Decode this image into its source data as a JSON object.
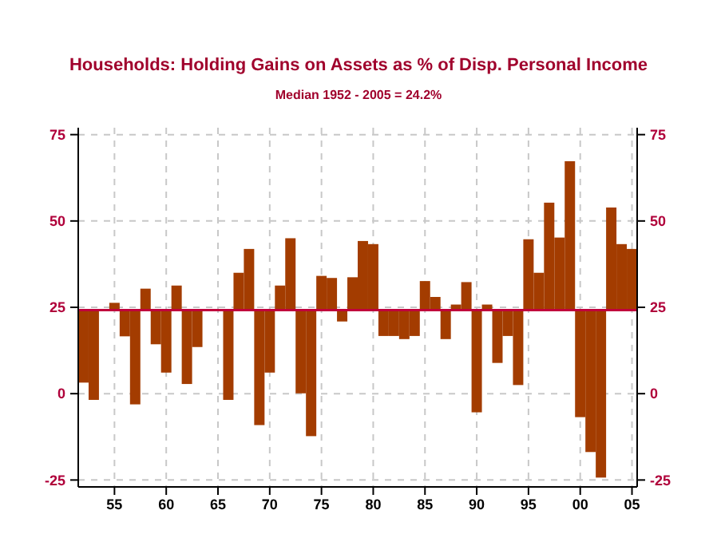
{
  "chart_data": {
    "type": "bar",
    "title": "Households: Holding Gains on Assets as % of Disp. Personal Income",
    "subtitle": "Median 1952 - 2005 = 24.2%",
    "x": [
      1952,
      1953,
      1954,
      1955,
      1956,
      1957,
      1958,
      1959,
      1960,
      1961,
      1962,
      1963,
      1964,
      1965,
      1966,
      1967,
      1968,
      1969,
      1970,
      1971,
      1972,
      1973,
      1974,
      1975,
      1976,
      1977,
      1978,
      1979,
      1980,
      1981,
      1982,
      1983,
      1984,
      1985,
      1986,
      1987,
      1988,
      1989,
      1990,
      1991,
      1992,
      1993,
      1994,
      1995,
      1996,
      1997,
      1998,
      1999,
      2000,
      2001,
      2002,
      2003,
      2004,
      2005
    ],
    "base": [
      24.2,
      24.2,
      24.2,
      24.2,
      24.2,
      24.2,
      24.2,
      24.2,
      24.2,
      24.2,
      24.2,
      24.2,
      24.2,
      24.2,
      24.2,
      24.2,
      24.2,
      24.2,
      24.2,
      24.2,
      24.2,
      24.2,
      24.2,
      24.2,
      24.2,
      24.2,
      24.2,
      24.2,
      24.2,
      24.2,
      24.2,
      24.2,
      24.2,
      24.2,
      24.2,
      24.2,
      24.2,
      24.2,
      24.2,
      24.2,
      24.2,
      24.2,
      24.2,
      24.2,
      24.2,
      24.2,
      24.2,
      24.2,
      24.2,
      24.2,
      24.2,
      24.2,
      24.2,
      24.2
    ],
    "values": [
      -21.0,
      -26.0,
      0.3,
      2.1,
      -7.6,
      -27.3,
      6.2,
      -9.9,
      -18.1,
      7.1,
      -21.4,
      -10.7,
      0.3,
      -0.2,
      -26.0,
      10.8,
      17.7,
      -33.3,
      -18.1,
      7.1,
      20.8,
      -24.1,
      -36.5,
      9.9,
      9.3,
      -3.3,
      9.5,
      20.0,
      19.1,
      -7.5,
      -7.5,
      -8.4,
      -7.5,
      8.4,
      3.8,
      -8.4,
      1.6,
      8.1,
      -29.6,
      1.6,
      -15.3,
      -7.5,
      -21.7,
      20.5,
      10.8,
      31.1,
      21.0,
      43.1,
      -31.0,
      -41.1,
      -48.5,
      29.7,
      19.1,
      17.7
    ],
    "color": "#a33c00",
    "xlim": [
      1951.5,
      2005.5
    ],
    "xticks": [
      {
        "value": 1955,
        "label": "55"
      },
      {
        "value": 1960,
        "label": "60"
      },
      {
        "value": 1965,
        "label": "65"
      },
      {
        "value": 1970,
        "label": "70"
      },
      {
        "value": 1975,
        "label": "75"
      },
      {
        "value": 1980,
        "label": "80"
      },
      {
        "value": 1985,
        "label": "85"
      },
      {
        "value": 1990,
        "label": "90"
      },
      {
        "value": 1995,
        "label": "95"
      },
      {
        "value": 2000,
        "label": "00"
      },
      {
        "value": 2005,
        "label": "05"
      }
    ],
    "ylim": [
      -27,
      77
    ],
    "yticks": [
      -25,
      0,
      25,
      50,
      75
    ],
    "y2lim": [
      -27,
      77
    ],
    "y2ticks": [
      -25,
      0,
      25,
      50,
      75
    ],
    "ref_lines": [
      {
        "axis": "y",
        "value": 24.2,
        "color": "#c0003c"
      }
    ],
    "grid": true
  }
}
